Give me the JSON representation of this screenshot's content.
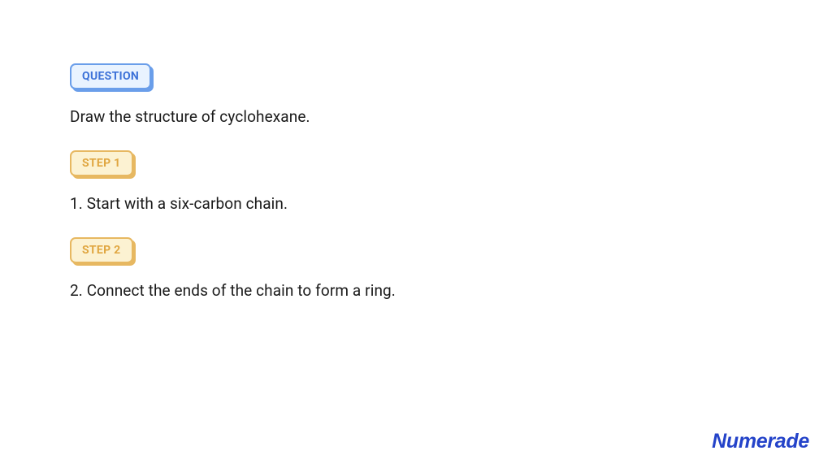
{
  "colors": {
    "background": "#ffffff",
    "text": "#1a1a1a",
    "question_badge_bg": "#e9f3ff",
    "question_badge_text": "#3d72d8",
    "question_badge_border": "#6a9eea",
    "step_badge_bg": "#fcf2d2",
    "step_badge_text": "#e0a640",
    "step_badge_border": "#e7b861",
    "brand": "#2443c9"
  },
  "typography": {
    "badge_fontsize": 14,
    "badge_fontweight": 700,
    "body_fontsize": 19,
    "brand_fontsize": 25
  },
  "question": {
    "badge": "QUESTION",
    "text": "Draw the structure of cyclohexane."
  },
  "steps": [
    {
      "badge": "STEP 1",
      "text": "1. Start with a six-carbon chain."
    },
    {
      "badge": "STEP 2",
      "text": "2. Connect the ends of the chain to form a ring."
    }
  ],
  "brand": "Numerade"
}
